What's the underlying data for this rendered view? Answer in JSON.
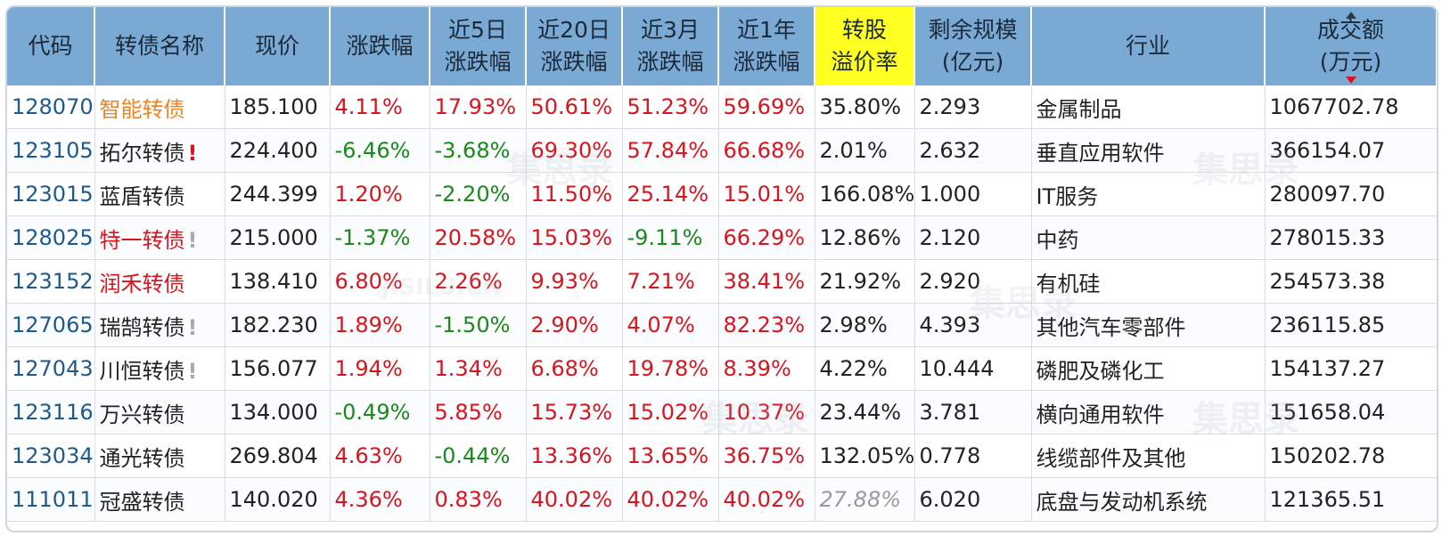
{
  "headers": {
    "code": "代码",
    "name": "转债名称",
    "price": "现价",
    "change": "涨跌幅",
    "d5_1": "近5日",
    "d5_2": "涨跌幅",
    "d20_1": "近20日",
    "d20_2": "涨跌幅",
    "m3_1": "近3月",
    "m3_2": "涨跌幅",
    "y1_1": "近1年",
    "y1_2": "涨跌幅",
    "prem_1": "转股",
    "prem_2": "溢价率",
    "scale_1": "剩余规模",
    "scale_2": "(亿元)",
    "industry": "行业",
    "vol_1": "成交额",
    "vol_2": "(万元)"
  },
  "rows": [
    {
      "code": "128070",
      "name": "智能转债",
      "flag": "",
      "price": "185.100",
      "change": "4.11%",
      "d5": "17.93%",
      "d20": "50.61%",
      "m3": "51.23%",
      "y1": "59.69%",
      "prem": "35.80%",
      "scale": "2.293",
      "industry": "金属制品",
      "vol": "1067702.78"
    },
    {
      "code": "123105",
      "name": "拓尔转债",
      "flag": "!",
      "price": "224.400",
      "change": "-6.46%",
      "d5": "-3.68%",
      "d20": "69.30%",
      "m3": "57.84%",
      "y1": "66.68%",
      "prem": "2.01%",
      "scale": "2.632",
      "industry": "垂直应用软件",
      "vol": "366154.07"
    },
    {
      "code": "123015",
      "name": "蓝盾转债",
      "flag": "",
      "price": "244.399",
      "change": "1.20%",
      "d5": "-2.20%",
      "d20": "11.50%",
      "m3": "25.14%",
      "y1": "15.01%",
      "prem": "166.08%",
      "scale": "1.000",
      "industry": "IT服务",
      "vol": "280097.70"
    },
    {
      "code": "128025",
      "name": "特一转债",
      "flag": "!",
      "price": "215.000",
      "change": "-1.37%",
      "d5": "20.58%",
      "d20": "15.03%",
      "m3": "-9.11%",
      "y1": "66.29%",
      "prem": "12.86%",
      "scale": "2.120",
      "industry": "中药",
      "vol": "278015.33"
    },
    {
      "code": "123152",
      "name": "润禾转债",
      "flag": "",
      "price": "138.410",
      "change": "6.80%",
      "d5": "2.26%",
      "d20": "9.93%",
      "m3": "7.21%",
      "y1": "38.41%",
      "prem": "21.92%",
      "scale": "2.920",
      "industry": "有机硅",
      "vol": "254573.38"
    },
    {
      "code": "127065",
      "name": "瑞鹄转债",
      "flag": "!",
      "price": "182.230",
      "change": "1.89%",
      "d5": "-1.50%",
      "d20": "2.90%",
      "m3": "4.07%",
      "y1": "82.23%",
      "prem": "2.98%",
      "scale": "4.393",
      "industry": "其他汽车零部件",
      "vol": "236115.85"
    },
    {
      "code": "127043",
      "name": "川恒转债",
      "flag": "!",
      "price": "156.077",
      "change": "1.94%",
      "d5": "1.34%",
      "d20": "6.68%",
      "m3": "19.78%",
      "y1": "8.39%",
      "prem": "4.22%",
      "scale": "10.444",
      "industry": "磷肥及磷化工",
      "vol": "154137.27"
    },
    {
      "code": "123116",
      "name": "万兴转债",
      "flag": "",
      "price": "134.000",
      "change": "-0.49%",
      "d5": "5.85%",
      "d20": "15.73%",
      "m3": "15.02%",
      "y1": "10.37%",
      "prem": "23.44%",
      "scale": "3.781",
      "industry": "横向通用软件",
      "vol": "151658.04"
    },
    {
      "code": "123034",
      "name": "通光转债",
      "flag": "",
      "price": "269.804",
      "change": "4.63%",
      "d5": "-0.44%",
      "d20": "13.36%",
      "m3": "13.65%",
      "y1": "36.75%",
      "prem": "132.05%",
      "scale": "0.778",
      "industry": "线缆部件及其他",
      "vol": "150202.78"
    },
    {
      "code": "111011",
      "name": "冠盛转债",
      "flag": "",
      "price": "140.020",
      "change": "4.36%",
      "d5": "0.83%",
      "d20": "40.02%",
      "m3": "40.02%",
      "y1": "40.02%",
      "prem": "27.88%",
      "scale": "6.020",
      "industry": "底盘与发动机系统",
      "vol": "121365.51"
    }
  ],
  "styles": {
    "name_colors": [
      "orange",
      "black",
      "black",
      "red",
      "red",
      "black",
      "black",
      "black",
      "black",
      "black"
    ],
    "flag_colors": [
      "",
      "red",
      "",
      "gray",
      "",
      "gray",
      "gray",
      "",
      "",
      ""
    ],
    "muted_premium_rows": [
      9
    ]
  },
  "watermark": {
    "line1": "集思录",
    "line2": "JISILU.CN"
  },
  "colors": {
    "header_bg": "#7aa9d3",
    "highlight_header": "#ffff22",
    "up": "#d8141e",
    "down": "#1a8a1a",
    "code": "#1d5a8e"
  }
}
